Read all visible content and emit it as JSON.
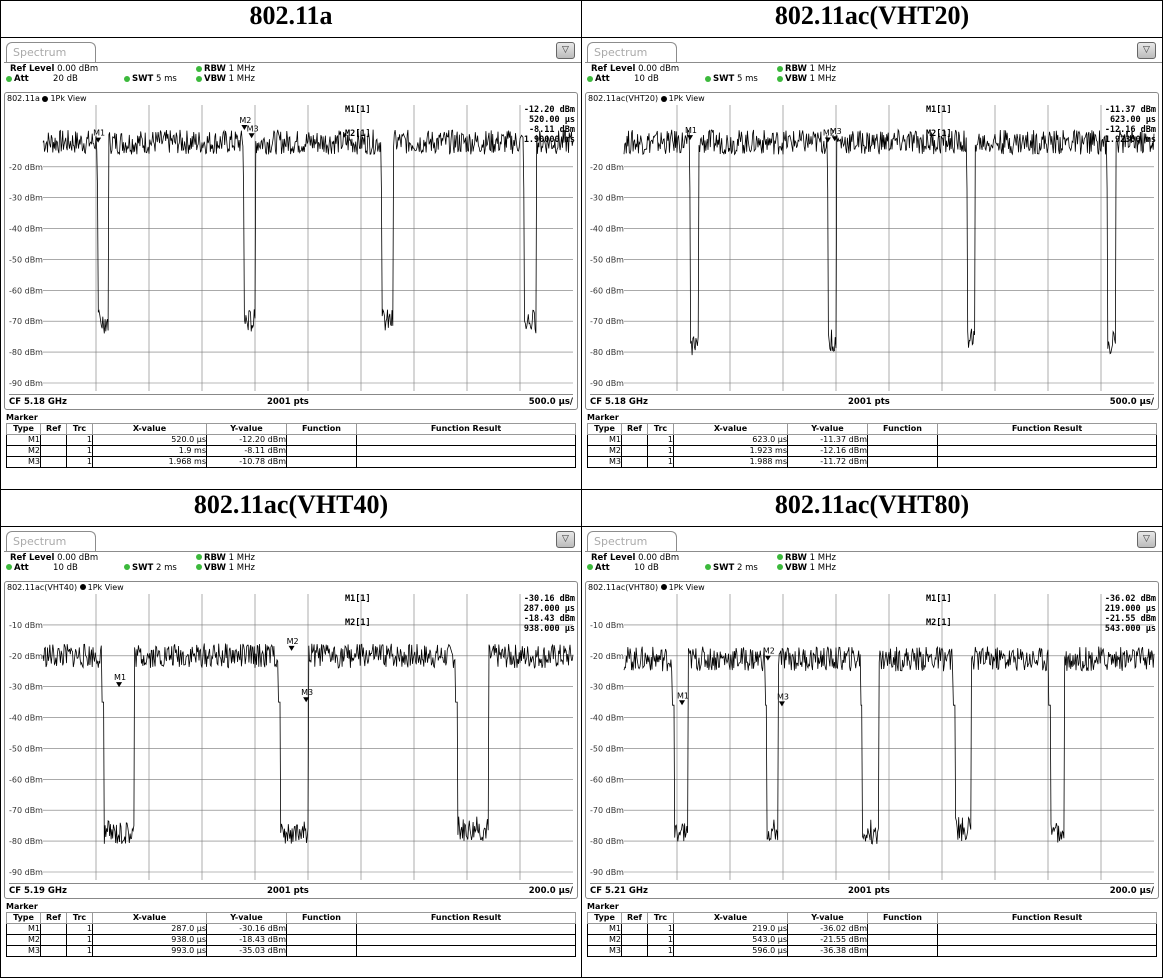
{
  "cells": [
    {
      "title": "802.11a",
      "tab": "Spectrum",
      "ref_label": "Ref Level",
      "ref_value": "0.00 dBm",
      "att_label": "Att",
      "att_value": "20 dB",
      "swt_label": "SWT",
      "swt_value": "5 ms",
      "rbw_label": "RBW",
      "rbw_value": "1 MHz",
      "vbw_label": "VBW",
      "vbw_value": "1 MHz",
      "trace_name": "802.11a",
      "trace_mode": "1Pk View",
      "ylabels": [
        "-20 dBm",
        "-30 dBm",
        "-40 dBm",
        "-50 dBm",
        "-60 dBm",
        "-70 dBm",
        "-80 dBm",
        "-90 dBm"
      ],
      "ylabel_start": -20,
      "m1_label": "M1[1]",
      "m1_y": "-12.20 dBm",
      "m1_x": "520.00 µs",
      "m2_label": "M2[1]",
      "m2_y": "-8.11 dBm",
      "m2_x": "1.90000 ms",
      "footer_left": "CF 5.18 GHz",
      "footer_mid": "2001 pts",
      "footer_right": "500.0 µs/",
      "marker_header": "Marker",
      "columns": [
        "Type",
        "Ref",
        "Trc",
        "X-value",
        "Y-value",
        "Function",
        "Function Result"
      ],
      "rows": [
        [
          "M1",
          "",
          "1",
          "520.0 µs",
          "-12.20 dBm",
          "",
          ""
        ],
        [
          "M2",
          "",
          "1",
          "1.9 ms",
          "-8.11 dBm",
          "",
          ""
        ],
        [
          "M3",
          "",
          "1",
          "1.968 ms",
          "-10.78 dBm",
          "",
          ""
        ]
      ]
    },
    {
      "title": "802.11ac(VHT20)",
      "tab": "Spectrum",
      "ref_label": "Ref Level",
      "ref_value": "0.00 dBm",
      "att_label": "Att",
      "att_value": "10 dB",
      "swt_label": "SWT",
      "swt_value": "5 ms",
      "rbw_label": "RBW",
      "rbw_value": "1 MHz",
      "vbw_label": "VBW",
      "vbw_value": "1 MHz",
      "trace_name": "802.11ac(VHT20)",
      "trace_mode": "1Pk View",
      "ylabels": [
        "-20 dBm",
        "-30 dBm",
        "-40 dBm",
        "-50 dBm",
        "-60 dBm",
        "-70 dBm",
        "-80 dBm",
        "-90 dBm"
      ],
      "ylabel_start": -20,
      "m1_label": "M1[1]",
      "m1_y": "-11.37 dBm",
      "m1_x": "623.00 µs",
      "m2_label": "M2[1]",
      "m2_y": "-12.16 dBm",
      "m2_x": "1.92300 ms",
      "footer_left": "CF 5.18 GHz",
      "footer_mid": "2001 pts",
      "footer_right": "500.0 µs/",
      "marker_header": "Marker",
      "columns": [
        "Type",
        "Ref",
        "Trc",
        "X-value",
        "Y-value",
        "Function",
        "Function Result"
      ],
      "rows": [
        [
          "M1",
          "",
          "1",
          "623.0 µs",
          "-11.37 dBm",
          "",
          ""
        ],
        [
          "M2",
          "",
          "1",
          "1.923 ms",
          "-12.16 dBm",
          "",
          ""
        ],
        [
          "M3",
          "",
          "1",
          "1.988 ms",
          "-11.72 dBm",
          "",
          ""
        ]
      ]
    },
    {
      "title": "802.11ac(VHT40)",
      "tab": "Spectrum",
      "ref_label": "Ref Level",
      "ref_value": "0.00 dBm",
      "att_label": "Att",
      "att_value": "10 dB",
      "swt_label": "SWT",
      "swt_value": "2 ms",
      "rbw_label": "RBW",
      "rbw_value": "1 MHz",
      "vbw_label": "VBW",
      "vbw_value": "1 MHz",
      "trace_name": "802.11ac(VHT40)",
      "trace_mode": "1Pk View",
      "ylabels": [
        "-10 dBm",
        "-20 dBm",
        "-30 dBm",
        "-40 dBm",
        "-50 dBm",
        "-60 dBm",
        "-70 dBm",
        "-80 dBm",
        "-90 dBm"
      ],
      "ylabel_start": -10,
      "m1_label": "M1[1]",
      "m1_y": "-30.16 dBm",
      "m1_x": "287.000 µs",
      "m2_label": "M2[1]",
      "m2_y": "-18.43 dBm",
      "m2_x": "938.000 µs",
      "footer_left": "CF 5.19 GHz",
      "footer_mid": "2001 pts",
      "footer_right": "200.0 µs/",
      "marker_header": "Marker",
      "columns": [
        "Type",
        "Ref",
        "Trc",
        "X-value",
        "Y-value",
        "Function",
        "Function Result"
      ],
      "rows": [
        [
          "M1",
          "",
          "1",
          "287.0 µs",
          "-30.16 dBm",
          "",
          ""
        ],
        [
          "M2",
          "",
          "1",
          "938.0 µs",
          "-18.43 dBm",
          "",
          ""
        ],
        [
          "M3",
          "",
          "1",
          "993.0 µs",
          "-35.03 dBm",
          "",
          ""
        ]
      ]
    },
    {
      "title": "802.11ac(VHT80)",
      "tab": "Spectrum",
      "ref_label": "Ref Level",
      "ref_value": "0.00 dBm",
      "att_label": "Att",
      "att_value": "10 dB",
      "swt_label": "SWT",
      "swt_value": "2 ms",
      "rbw_label": "RBW",
      "rbw_value": "1 MHz",
      "vbw_label": "VBW",
      "vbw_value": "1 MHz",
      "trace_name": "802.11ac(VHT80)",
      "trace_mode": "1Pk View",
      "ylabels": [
        "-10 dBm",
        "-20 dBm",
        "-30 dBm",
        "-40 dBm",
        "-50 dBm",
        "-60 dBm",
        "-70 dBm",
        "-80 dBm",
        "-90 dBm"
      ],
      "ylabel_start": -10,
      "m1_label": "M1[1]",
      "m1_y": "-36.02 dBm",
      "m1_x": "219.000 µs",
      "m2_label": "M2[1]",
      "m2_y": "-21.55 dBm",
      "m2_x": "543.000 µs",
      "footer_left": "CF 5.21 GHz",
      "footer_mid": "2001 pts",
      "footer_right": "200.0 µs/",
      "marker_header": "Marker",
      "columns": [
        "Type",
        "Ref",
        "Trc",
        "X-value",
        "Y-value",
        "Function",
        "Function Result"
      ],
      "rows": [
        [
          "M1",
          "",
          "1",
          "219.0 µs",
          "-36.02 dBm",
          "",
          ""
        ],
        [
          "M2",
          "",
          "1",
          "543.0 µs",
          "-21.55 dBm",
          "",
          ""
        ],
        [
          "M3",
          "",
          "1",
          "596.0 µs",
          "-36.38 dBm",
          "",
          ""
        ]
      ]
    }
  ],
  "chart_data": [
    {
      "type": "line",
      "title": "802.11a",
      "x_unit": "µs",
      "x_range": [
        0,
        5000
      ],
      "ylim": [
        -100,
        0
      ],
      "noise_level": -12,
      "bursts": [
        {
          "start": 520,
          "end": 620,
          "floor": -70
        },
        {
          "start": 1900,
          "end": 2000,
          "floor": -70
        },
        {
          "start": 3200,
          "end": 3300,
          "floor": -70
        },
        {
          "start": 4540,
          "end": 4650,
          "floor": -70
        }
      ],
      "markers": [
        {
          "name": "M1",
          "x": 520.0,
          "y": -12.2
        },
        {
          "name": "M2",
          "x": 1900,
          "y": -8.11
        },
        {
          "name": "M3",
          "x": 1968,
          "y": -10.78
        }
      ]
    },
    {
      "type": "line",
      "title": "802.11ac(VHT20)",
      "x_unit": "µs",
      "x_range": [
        0,
        5000
      ],
      "ylim": [
        -100,
        0
      ],
      "noise_level": -12,
      "bursts": [
        {
          "start": 623,
          "end": 700,
          "floor": -78
        },
        {
          "start": 1923,
          "end": 2000,
          "floor": -76
        },
        {
          "start": 3240,
          "end": 3310,
          "floor": -75
        },
        {
          "start": 4560,
          "end": 4640,
          "floor": -77
        }
      ],
      "markers": [
        {
          "name": "M1",
          "x": 623.0,
          "y": -11.37
        },
        {
          "name": "M2",
          "x": 1923,
          "y": -12.16
        },
        {
          "name": "M3",
          "x": 1988,
          "y": -11.72
        }
      ]
    },
    {
      "type": "line",
      "title": "802.11ac(VHT40)",
      "x_unit": "µs",
      "x_range": [
        0,
        2000
      ],
      "ylim": [
        -100,
        0
      ],
      "noise_level": -20,
      "bursts": [
        {
          "start": 230,
          "end": 345,
          "floor": -77
        },
        {
          "start": 895,
          "end": 1000,
          "floor": -77
        },
        {
          "start": 1565,
          "end": 1680,
          "floor": -76
        }
      ],
      "markers": [
        {
          "name": "M1",
          "x": 287.0,
          "y": -30.16
        },
        {
          "name": "M2",
          "x": 938.0,
          "y": -18.43
        },
        {
          "name": "M3",
          "x": 993.0,
          "y": -35.03
        }
      ]
    },
    {
      "type": "line",
      "title": "802.11ac(VHT80)",
      "x_unit": "µs",
      "x_range": [
        0,
        2000
      ],
      "ylim": [
        -100,
        0
      ],
      "noise_level": -21,
      "bursts": [
        {
          "start": 190,
          "end": 240,
          "floor": -77
        },
        {
          "start": 540,
          "end": 580,
          "floor": -77
        },
        {
          "start": 900,
          "end": 960,
          "floor": -77
        },
        {
          "start": 1250,
          "end": 1310,
          "floor": -76
        },
        {
          "start": 1610,
          "end": 1660,
          "floor": -77
        }
      ],
      "markers": [
        {
          "name": "M1",
          "x": 219.0,
          "y": -36.02
        },
        {
          "name": "M2",
          "x": 543.0,
          "y": -21.55
        },
        {
          "name": "M3",
          "x": 596.0,
          "y": -36.38
        }
      ]
    }
  ]
}
